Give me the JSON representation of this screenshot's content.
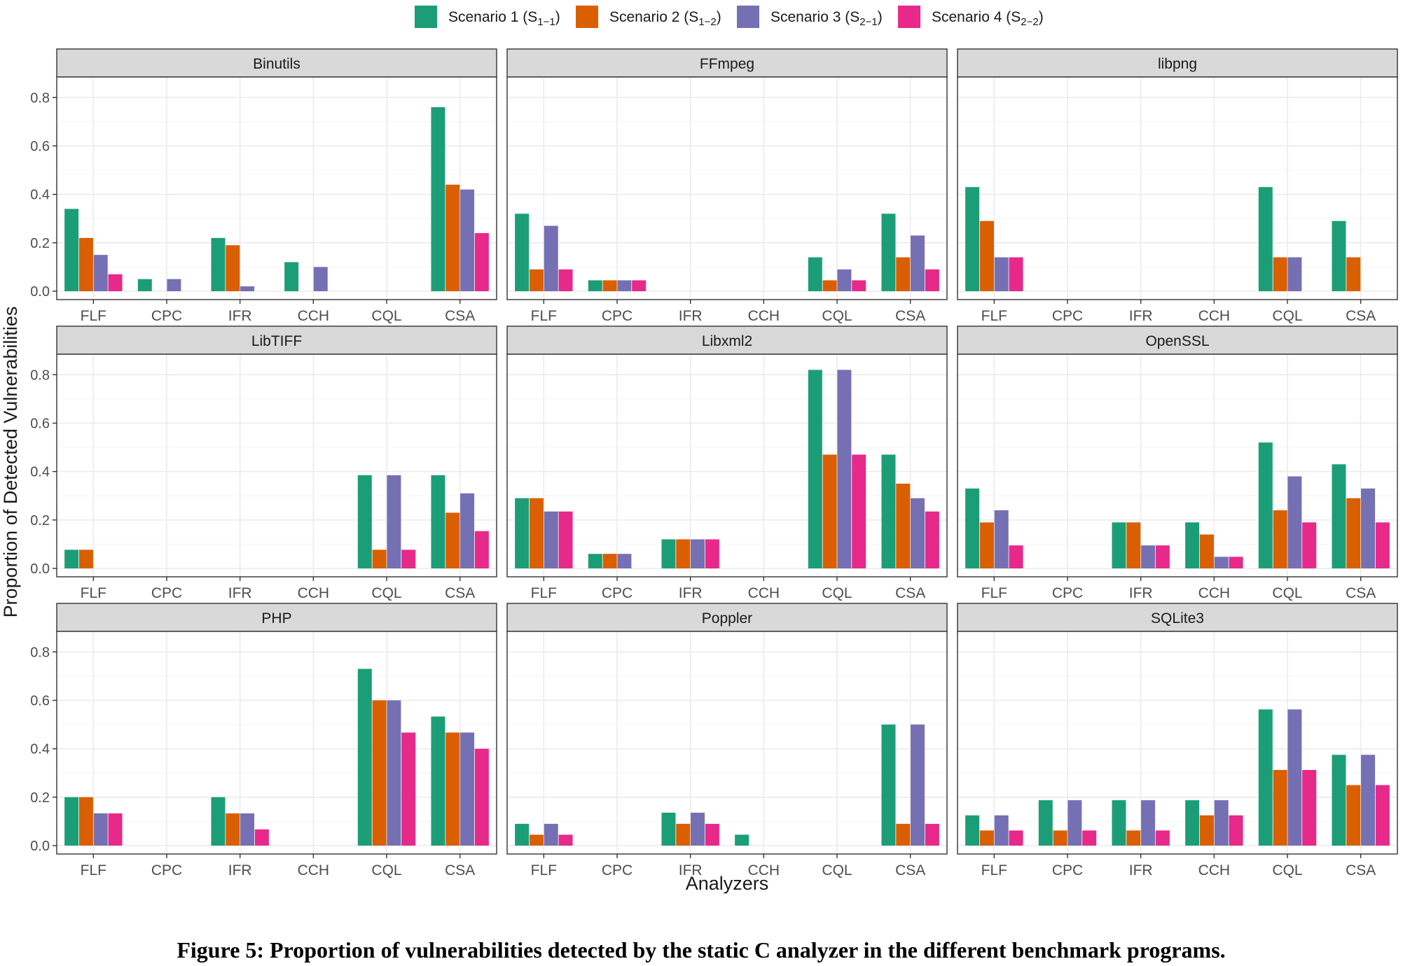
{
  "chart_data": {
    "type": "bar",
    "caption": "Figure 5: Proportion of vulnerabilities detected by the static C analyzer in the different benchmark programs.",
    "xlabel": "Analyzers",
    "ylabel": "Proportion of Detected Vulnerabilities",
    "ylim": [
      0,
      0.85
    ],
    "yticks": [
      "0.0",
      "0.2",
      "0.4",
      "0.6",
      "0.8"
    ],
    "ytick_values": [
      0,
      0.2,
      0.4,
      0.6,
      0.8
    ],
    "categories": [
      "FLF",
      "CPC",
      "IFR",
      "CCH",
      "CQL",
      "CSA"
    ],
    "grid": true,
    "legend_position": "top",
    "series": [
      {
        "name": "Scenario 1 (S",
        "sub": "1−1",
        "close": ")",
        "color": "#1b9e77"
      },
      {
        "name": "Scenario 2 (S",
        "sub": "1−2",
        "close": ")",
        "color": "#d95f02"
      },
      {
        "name": "Scenario 3 (S",
        "sub": "2−1",
        "close": ")",
        "color": "#7570b3"
      },
      {
        "name": "Scenario 4 (S",
        "sub": "2−2",
        "close": ")",
        "color": "#e7298a"
      }
    ],
    "panels": [
      {
        "title": "Binutils",
        "values": [
          [
            0.34,
            0.22,
            0.15,
            0.07
          ],
          [
            0.05,
            0,
            0.05,
            0
          ],
          [
            0.22,
            0.19,
            0.02,
            0
          ],
          [
            0.12,
            0,
            0.1,
            0
          ],
          [
            0,
            0,
            0,
            0
          ],
          [
            0.76,
            0.44,
            0.42,
            0.24
          ]
        ]
      },
      {
        "title": "FFmpeg",
        "values": [
          [
            0.32,
            0.09,
            0.27,
            0.09
          ],
          [
            0.045,
            0.045,
            0.045,
            0.045
          ],
          [
            0,
            0,
            0,
            0
          ],
          [
            0,
            0,
            0,
            0
          ],
          [
            0.14,
            0.045,
            0.09,
            0.045
          ],
          [
            0.32,
            0.14,
            0.23,
            0.09
          ]
        ]
      },
      {
        "title": "libpng",
        "values": [
          [
            0.43,
            0.29,
            0.14,
            0.14
          ],
          [
            0,
            0,
            0,
            0
          ],
          [
            0,
            0,
            0,
            0
          ],
          [
            0,
            0,
            0,
            0
          ],
          [
            0.43,
            0.14,
            0.14,
            0
          ],
          [
            0.29,
            0.14,
            0,
            0
          ]
        ]
      },
      {
        "title": "LibTIFF",
        "values": [
          [
            0.077,
            0.077,
            0,
            0
          ],
          [
            0,
            0,
            0,
            0
          ],
          [
            0,
            0,
            0,
            0
          ],
          [
            0,
            0,
            0,
            0
          ],
          [
            0.385,
            0.077,
            0.385,
            0.077
          ],
          [
            0.385,
            0.23,
            0.31,
            0.154
          ]
        ]
      },
      {
        "title": "Libxml2",
        "values": [
          [
            0.29,
            0.29,
            0.235,
            0.235
          ],
          [
            0.06,
            0.06,
            0.06,
            0
          ],
          [
            0.12,
            0.12,
            0.12,
            0.12
          ],
          [
            0,
            0,
            0,
            0
          ],
          [
            0.82,
            0.47,
            0.82,
            0.47
          ],
          [
            0.47,
            0.35,
            0.29,
            0.235
          ]
        ]
      },
      {
        "title": "OpenSSL",
        "values": [
          [
            0.33,
            0.19,
            0.24,
            0.095
          ],
          [
            0,
            0,
            0,
            0
          ],
          [
            0.19,
            0.19,
            0.095,
            0.095
          ],
          [
            0.19,
            0.14,
            0.048,
            0.048
          ],
          [
            0.52,
            0.24,
            0.38,
            0.19
          ],
          [
            0.43,
            0.29,
            0.33,
            0.19
          ]
        ]
      },
      {
        "title": "PHP",
        "values": [
          [
            0.2,
            0.2,
            0.133,
            0.133
          ],
          [
            0,
            0,
            0,
            0
          ],
          [
            0.2,
            0.133,
            0.133,
            0.067
          ],
          [
            0,
            0,
            0,
            0
          ],
          [
            0.73,
            0.6,
            0.6,
            0.467
          ],
          [
            0.533,
            0.467,
            0.467,
            0.4
          ]
        ]
      },
      {
        "title": "Poppler",
        "values": [
          [
            0.09,
            0.045,
            0.09,
            0.045
          ],
          [
            0,
            0,
            0,
            0
          ],
          [
            0.136,
            0.09,
            0.136,
            0.09
          ],
          [
            0.045,
            0,
            0,
            0
          ],
          [
            0,
            0,
            0,
            0
          ],
          [
            0.5,
            0.09,
            0.5,
            0.09
          ]
        ]
      },
      {
        "title": "SQLite3",
        "values": [
          [
            0.125,
            0.0625,
            0.125,
            0.0625
          ],
          [
            0.1875,
            0.0625,
            0.1875,
            0.0625
          ],
          [
            0.1875,
            0.0625,
            0.1875,
            0.0625
          ],
          [
            0.1875,
            0.125,
            0.1875,
            0.125
          ],
          [
            0.5625,
            0.3125,
            0.5625,
            0.3125
          ],
          [
            0.375,
            0.25,
            0.375,
            0.25
          ]
        ]
      }
    ]
  }
}
